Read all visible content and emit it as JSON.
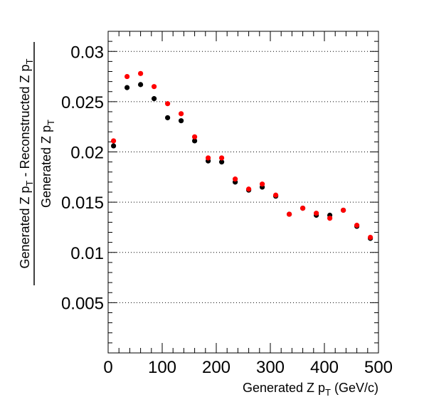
{
  "chart_data": {
    "type": "scatter",
    "xlabel": "Generated Z p_T (GeV/c)",
    "ylabel_numerator": "Generated Z p_T - Reconstructed Z p_T",
    "ylabel_denominator": "Generated Z p_T",
    "xlim": [
      0,
      500
    ],
    "ylim": [
      0.0,
      0.032
    ],
    "grid": "horizontal-dotted",
    "x_ticks": [
      0,
      100,
      200,
      300,
      400,
      500
    ],
    "x_tick_labels": [
      "0",
      "100",
      "200",
      "300",
      "400",
      "500"
    ],
    "y_ticks": [
      0.005,
      0.01,
      0.015,
      0.02,
      0.025,
      0.03
    ],
    "y_tick_labels": [
      "0.005",
      "0.01",
      "0.015",
      "0.02",
      "0.025",
      "0.03"
    ],
    "series": [
      {
        "color": "#000000",
        "x": [
          10,
          35,
          60,
          85,
          110,
          135,
          160,
          185,
          210,
          235,
          260,
          285,
          310,
          335,
          360,
          385,
          410,
          435,
          460,
          485
        ],
        "y": [
          0.0206,
          0.0264,
          0.0267,
          0.0253,
          0.0234,
          0.0231,
          0.0211,
          0.0191,
          0.019,
          0.017,
          0.0162,
          0.0165,
          0.0156,
          0.0138,
          0.0144,
          0.0137,
          0.0137,
          0.0142,
          0.0126,
          0.0114
        ]
      },
      {
        "color": "#ff0000",
        "x": [
          10,
          35,
          60,
          85,
          110,
          135,
          160,
          185,
          210,
          235,
          260,
          285,
          310,
          335,
          360,
          385,
          410,
          435,
          460,
          485
        ],
        "y": [
          0.0211,
          0.0275,
          0.0278,
          0.0265,
          0.0248,
          0.0238,
          0.0215,
          0.0194,
          0.0194,
          0.0173,
          0.0163,
          0.0168,
          0.0157,
          0.0138,
          0.0144,
          0.0139,
          0.0134,
          0.0142,
          0.0127,
          0.0115
        ]
      }
    ]
  }
}
